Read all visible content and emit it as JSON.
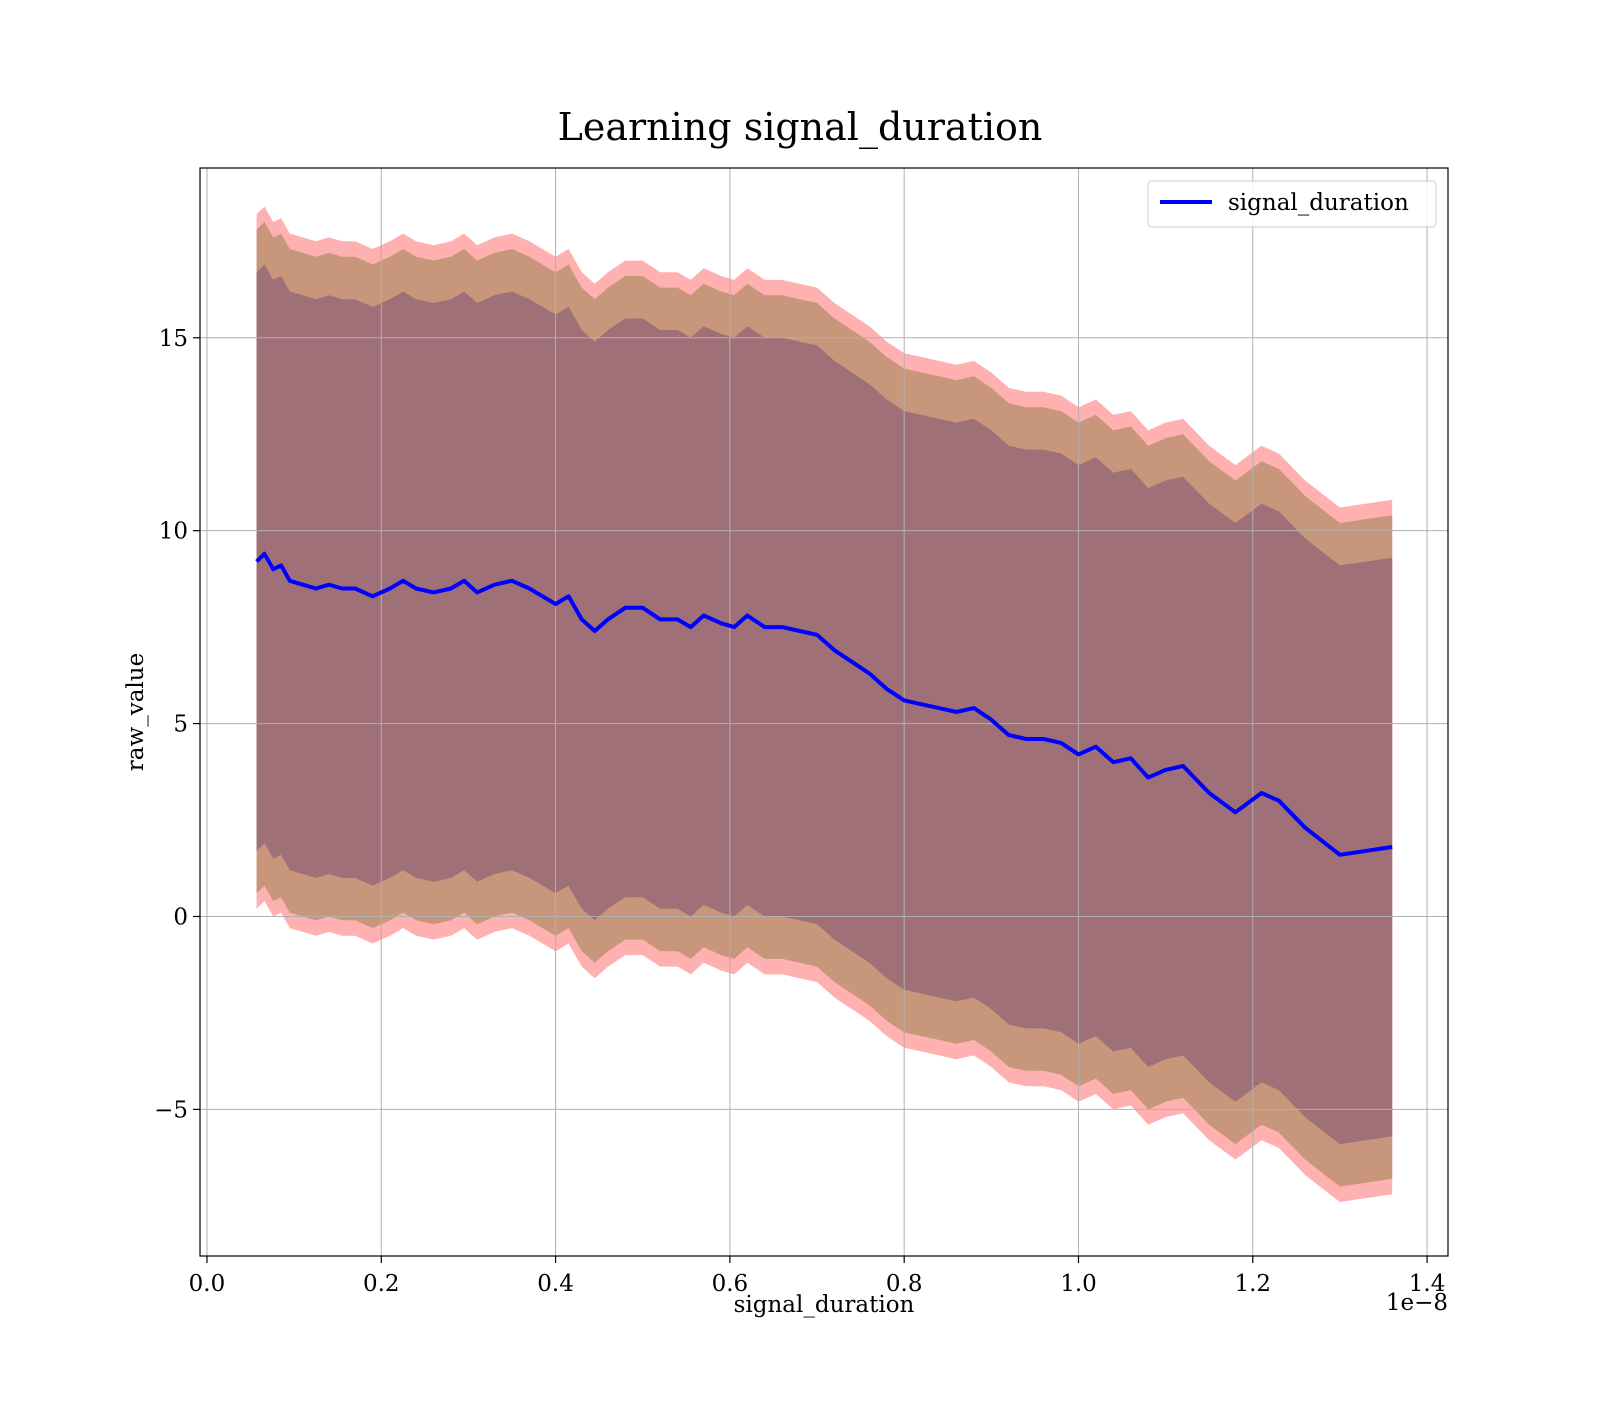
{
  "chart_data": {
    "type": "line",
    "title": "Learning signal_duration",
    "xlabel": "signal_duration",
    "ylabel": "raw_value",
    "x_offset_label": "1e−8",
    "xlim": [
      -0.008,
      1.424
    ],
    "ylim": [
      -8.8,
      19.4
    ],
    "x_ticks": [
      0.0,
      0.2,
      0.4,
      0.6,
      0.8,
      1.0,
      1.2,
      1.4
    ],
    "x_tick_labels": [
      "0.0",
      "0.2",
      "0.4",
      "0.6",
      "0.8",
      "1.0",
      "1.2",
      "1.4"
    ],
    "y_ticks": [
      -5,
      0,
      5,
      10,
      15
    ],
    "y_tick_labels": [
      "−5",
      "0",
      "5",
      "10",
      "15"
    ],
    "grid": true,
    "legend_position": "top-right",
    "colors": {
      "line": "#0000ff",
      "band_outer": "#ffb0b0",
      "band_middle": "#c8967a",
      "band_inner": "#a07078"
    },
    "series": [
      {
        "name": "signal_duration",
        "x": [
          0.057,
          0.066,
          0.076,
          0.085,
          0.095,
          0.11,
          0.125,
          0.14,
          0.155,
          0.17,
          0.19,
          0.21,
          0.225,
          0.24,
          0.26,
          0.28,
          0.295,
          0.31,
          0.33,
          0.35,
          0.37,
          0.385,
          0.4,
          0.415,
          0.43,
          0.445,
          0.46,
          0.48,
          0.5,
          0.52,
          0.54,
          0.555,
          0.57,
          0.59,
          0.605,
          0.62,
          0.64,
          0.66,
          0.68,
          0.7,
          0.72,
          0.74,
          0.76,
          0.78,
          0.8,
          0.82,
          0.84,
          0.86,
          0.88,
          0.9,
          0.92,
          0.94,
          0.96,
          0.98,
          1.0,
          1.02,
          1.04,
          1.06,
          1.08,
          1.1,
          1.12,
          1.15,
          1.18,
          1.21,
          1.23,
          1.26,
          1.3,
          1.36
        ],
        "y": [
          9.2,
          9.4,
          9.0,
          9.1,
          8.7,
          8.6,
          8.5,
          8.6,
          8.5,
          8.5,
          8.3,
          8.5,
          8.7,
          8.5,
          8.4,
          8.5,
          8.7,
          8.4,
          8.6,
          8.7,
          8.5,
          8.3,
          8.1,
          8.3,
          7.7,
          7.4,
          7.7,
          8.0,
          8.0,
          7.7,
          7.7,
          7.5,
          7.8,
          7.6,
          7.5,
          7.8,
          7.5,
          7.5,
          7.4,
          7.3,
          6.9,
          6.6,
          6.3,
          5.9,
          5.6,
          5.5,
          5.4,
          5.3,
          5.4,
          5.1,
          4.7,
          4.6,
          4.6,
          4.5,
          4.2,
          4.4,
          4.0,
          4.1,
          3.6,
          3.8,
          3.9,
          3.2,
          2.7,
          3.2,
          3.0,
          2.3,
          1.6,
          1.8
        ]
      }
    ],
    "bands": [
      {
        "name": "outer",
        "half_width": 9.0
      },
      {
        "name": "middle",
        "half_width": 8.6
      },
      {
        "name": "inner",
        "half_width": 7.5
      }
    ]
  }
}
